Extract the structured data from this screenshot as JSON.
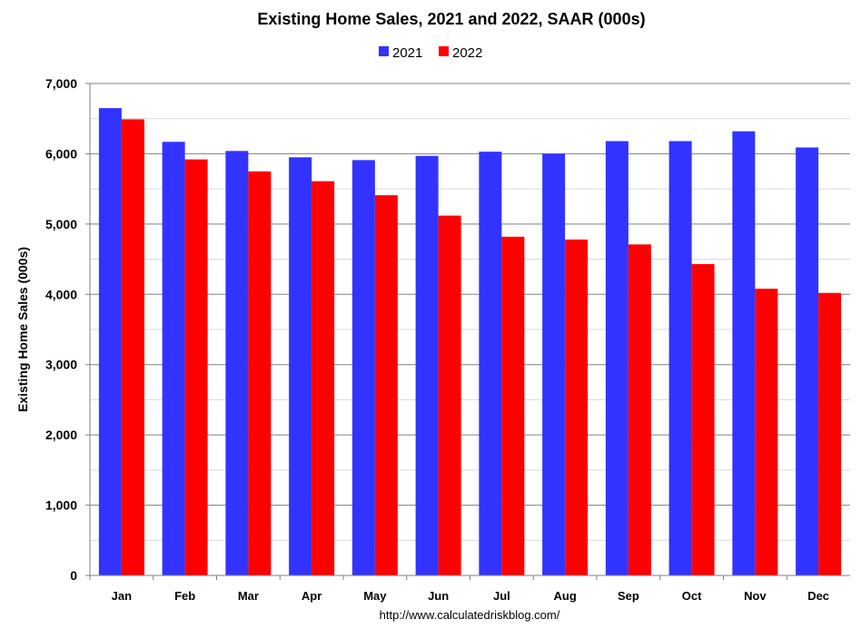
{
  "chart_data": {
    "type": "bar",
    "title": "Existing Home Sales,  2021 and 2022, SAAR (000s)",
    "ylabel": "Existing Home Sales (000s)",
    "xlabel": "",
    "categories": [
      "Jan",
      "Feb",
      "Mar",
      "Apr",
      "May",
      "Jun",
      "Jul",
      "Aug",
      "Sep",
      "Oct",
      "Nov",
      "Dec"
    ],
    "series": [
      {
        "name": "2021",
        "color": "#3333ff",
        "values": [
          6650,
          6170,
          6040,
          5950,
          5910,
          5970,
          6030,
          6000,
          6180,
          6180,
          6320,
          6090
        ]
      },
      {
        "name": "2022",
        "color": "#ff0000",
        "values": [
          6490,
          5920,
          5750,
          5610,
          5410,
          5120,
          4820,
          4780,
          4710,
          4430,
          4080,
          4020
        ]
      }
    ],
    "ylim": [
      0,
      7000
    ],
    "yticks": [
      "0",
      "1,000",
      "2,000",
      "3,000",
      "4,000",
      "5,000",
      "6,000",
      "7,000"
    ],
    "grid": true,
    "legend_position": "top-center",
    "source": "http://www.calculatedriskblog.com/"
  }
}
